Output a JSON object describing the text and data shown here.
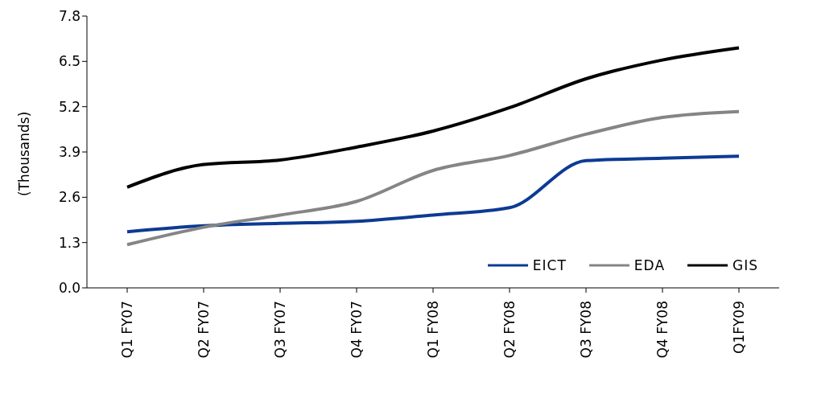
{
  "chart_data": {
    "type": "line",
    "ylabel": "(Thousands)",
    "categories": [
      "Q1 FY07",
      "Q2 FY07",
      "Q3 FY07",
      "Q4 FY07",
      "Q1 FY08",
      "Q2 FY08",
      "Q3 FY08",
      "Q4 FY08",
      "Q1FY09"
    ],
    "series": [
      {
        "name": "EICT",
        "color": "#0d3a94",
        "values": [
          1.61,
          1.78,
          1.85,
          1.91,
          2.09,
          2.3,
          3.65,
          3.72,
          3.78
        ]
      },
      {
        "name": "EDA",
        "color": "#858585",
        "values": [
          1.24,
          1.74,
          2.09,
          2.48,
          3.37,
          3.8,
          4.41,
          4.89,
          5.06
        ]
      },
      {
        "name": "GIS",
        "color": "#000000",
        "values": [
          2.89,
          3.54,
          3.67,
          4.04,
          4.5,
          5.17,
          6.0,
          6.54,
          6.89
        ]
      }
    ],
    "ylim": [
      0,
      7.8
    ],
    "yticks": [
      {
        "value": 0,
        "label": "0.0"
      },
      1.3,
      2.6,
      3.9,
      5.2,
      6.5,
      7.8
    ],
    "grid": false,
    "legend": "bottom right",
    "marker": "none",
    "line_style": "solid"
  }
}
